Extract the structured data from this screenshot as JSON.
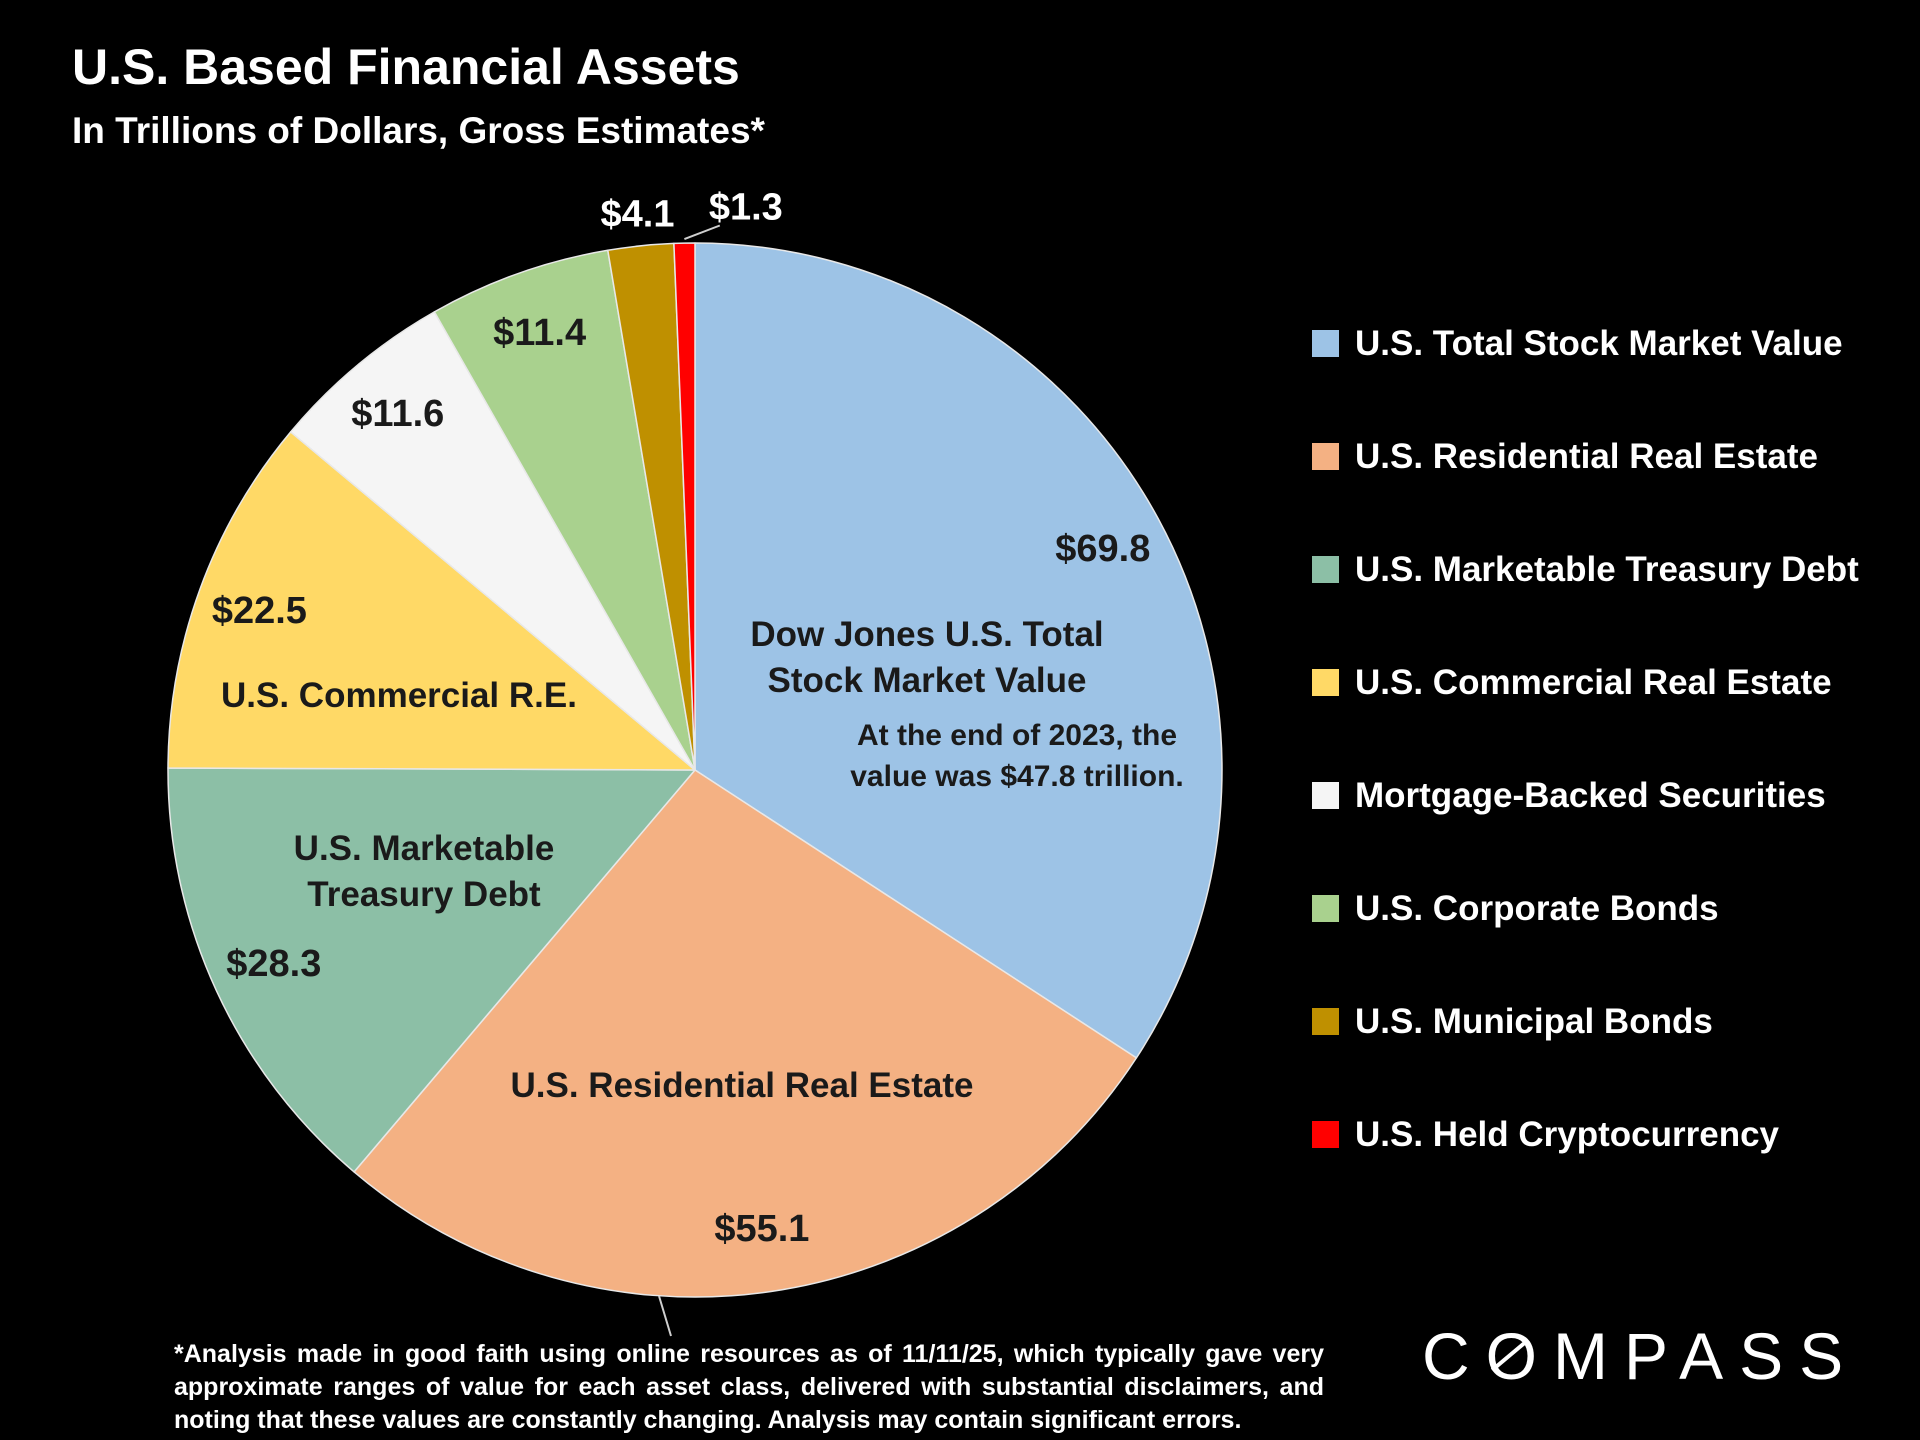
{
  "page": {
    "title": "U.S. Based Financial Assets",
    "subtitle": "In Trillions of Dollars, Gross Estimates*"
  },
  "chart_data": {
    "type": "pie",
    "title": "U.S. Based Financial Assets",
    "subtitle": "In Trillions of Dollars, Gross Estimates*",
    "value_unit": "trillions of U.S. dollars",
    "start_angle_deg": 0,
    "direction": "clockwise",
    "legend_position": "right",
    "slices": [
      {
        "label": "U.S. Total Stock Market Value",
        "value": 69.8,
        "display_value": "$69.8",
        "color": "#9DC3E6"
      },
      {
        "label": "U.S. Residential Real Estate",
        "value": 55.1,
        "display_value": "$55.1",
        "color": "#F4B183"
      },
      {
        "label": "U.S. Marketable Treasury Debt",
        "value": 28.3,
        "display_value": "$28.3",
        "color": "#8CBFA6"
      },
      {
        "label": "U.S. Commercial Real Estate",
        "value": 22.5,
        "display_value": "$22.5",
        "color": "#FFD966"
      },
      {
        "label": "Mortgage-Backed Securities",
        "value": 11.6,
        "display_value": "$11.6",
        "color": "#F5F5F5"
      },
      {
        "label": "U.S. Corporate Bonds",
        "value": 11.4,
        "display_value": "$11.4",
        "color": "#A9D18E"
      },
      {
        "label": "U.S. Municipal Bonds",
        "value": 4.1,
        "display_value": "$4.1",
        "color": "#BF9000"
      },
      {
        "label": "U.S. Held Cryptocurrency",
        "value": 1.3,
        "display_value": "$1.3",
        "color": "#FF0000"
      }
    ]
  },
  "annotations": {
    "dow_jones": {
      "line1": "Dow Jones U.S. Total",
      "line2": "Stock Market Value"
    },
    "note_2023": {
      "line1": "At the end of 2023, the",
      "line2": "value was $47.8 trillion."
    },
    "commercial": "U.S. Commercial R.E.",
    "treasury": {
      "line1": "U.S. Marketable",
      "line2": "Treasury Debt"
    },
    "residential": "U.S. Residential Real Estate"
  },
  "footnote": "*Analysis made in good faith using online resources as of 11/11/25, which typically gave very approximate ranges of value for each asset class, delivered with substantial disclaimers, and noting that these values are constantly changing. Analysis may contain significant errors.",
  "logo": {
    "text": "COMPASS",
    "part1": "C",
    "part2": "O",
    "part3": "MPASS"
  }
}
